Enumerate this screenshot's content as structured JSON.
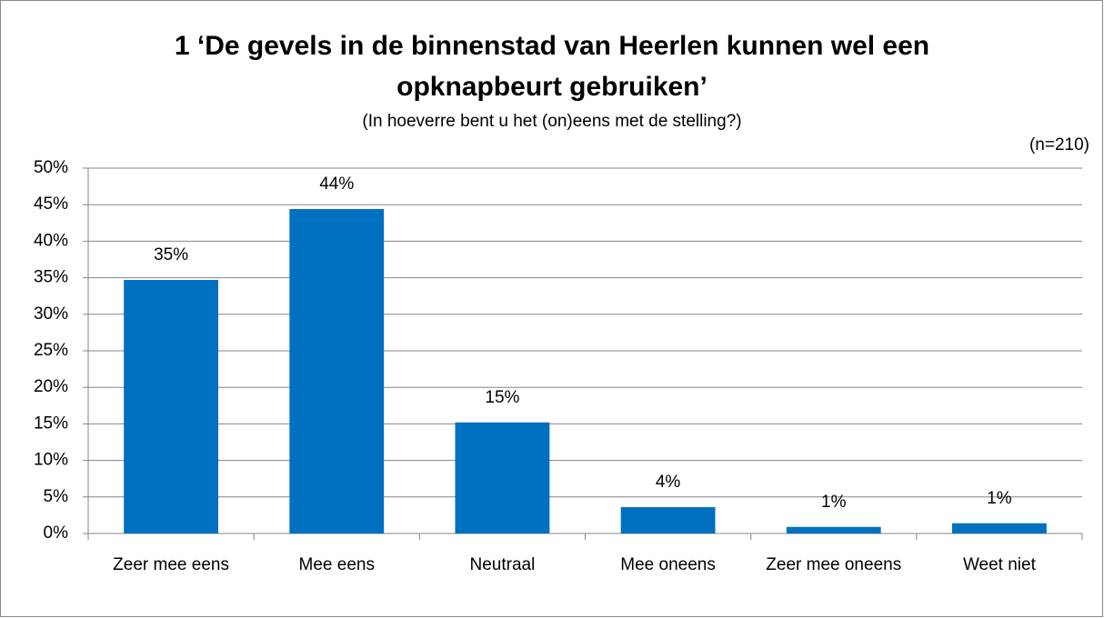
{
  "chart_data": {
    "type": "bar",
    "title": [
      "1 ‘De gevels in de binnenstad van Heerlen kunnen wel een",
      "opknapbeurt gebruiken’"
    ],
    "subtitle": "(In hoeverre bent u het (on)eens met de stelling?)",
    "annotation": "(n=210)",
    "categories": [
      "Zeer mee eens",
      "Mee eens",
      "Neutraal",
      "Mee oneens",
      "Zeer mee oneens",
      "Weet niet"
    ],
    "values": [
      34.7,
      44.4,
      15.2,
      3.6,
      0.9,
      1.4
    ],
    "value_labels": [
      "35%",
      "44%",
      "15%",
      "4%",
      "1%",
      "1%"
    ],
    "color": "#0070c0",
    "ylim": [
      0,
      50
    ],
    "yticks": [
      {
        "value": 0,
        "label": "0%"
      },
      {
        "value": 5,
        "label": "5%"
      },
      {
        "value": 10,
        "label": "10%"
      },
      {
        "value": 15,
        "label": "15%"
      },
      {
        "value": 20,
        "label": "20%"
      },
      {
        "value": 25,
        "label": "25%"
      },
      {
        "value": 30,
        "label": "30%"
      },
      {
        "value": 35,
        "label": "35%"
      },
      {
        "value": 40,
        "label": "40%"
      },
      {
        "value": 45,
        "label": "45%"
      },
      {
        "value": 50,
        "label": "50%"
      }
    ],
    "grid": true
  }
}
